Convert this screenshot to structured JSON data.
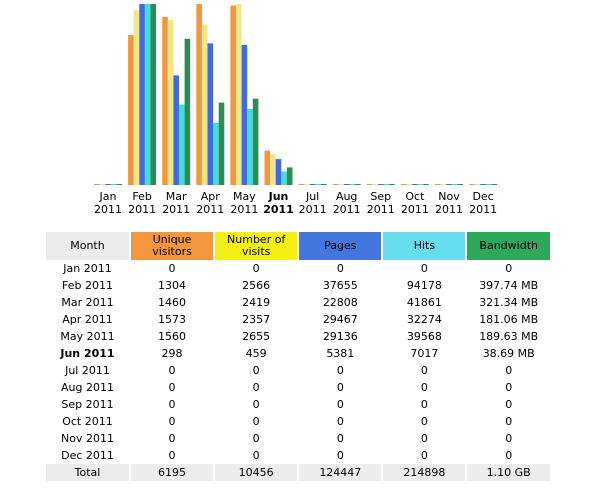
{
  "chart_data": {
    "type": "bar",
    "categories": [
      "Jan 2011",
      "Feb 2011",
      "Mar 2011",
      "Apr 2011",
      "May 2011",
      "Jun 2011",
      "Jul 2011",
      "Aug 2011",
      "Sep 2011",
      "Oct 2011",
      "Nov 2011",
      "Dec 2011"
    ],
    "series": [
      {
        "name": "Unique visitors",
        "color": "#F4963D",
        "values": [
          0,
          1304,
          1460,
          1573,
          1560,
          298,
          0,
          0,
          0,
          0,
          0,
          0
        ]
      },
      {
        "name": "Number of visits",
        "color": "#F0E68C",
        "values": [
          0,
          2566,
          2419,
          2357,
          2655,
          459,
          0,
          0,
          0,
          0,
          0,
          0
        ]
      },
      {
        "name": "Pages",
        "color": "#4169E1",
        "values": [
          0,
          37655,
          22808,
          29467,
          29136,
          5381,
          0,
          0,
          0,
          0,
          0,
          0
        ]
      },
      {
        "name": "Hits",
        "color": "#40E0D0",
        "values": [
          0,
          94178,
          41861,
          32274,
          39568,
          7017,
          0,
          0,
          0,
          0,
          0,
          0
        ]
      },
      {
        "name": "Bandwidth",
        "color": "#2E8B57",
        "values": [
          0,
          397.74,
          321.34,
          181.06,
          189.63,
          38.69,
          0,
          0,
          0,
          0,
          0,
          0
        ]
      }
    ]
  },
  "months_axis": [
    {
      "m": "Jan",
      "y": "2011"
    },
    {
      "m": "Feb",
      "y": "2011"
    },
    {
      "m": "Mar",
      "y": "2011"
    },
    {
      "m": "Apr",
      "y": "2011"
    },
    {
      "m": "May",
      "y": "2011"
    },
    {
      "m": "Jun",
      "y": "2011"
    },
    {
      "m": "Jul",
      "y": "2011"
    },
    {
      "m": "Aug",
      "y": "2011"
    },
    {
      "m": "Sep",
      "y": "2011"
    },
    {
      "m": "Oct",
      "y": "2011"
    },
    {
      "m": "Nov",
      "y": "2011"
    },
    {
      "m": "Dec",
      "y": "2011"
    }
  ],
  "current_month_index": 5,
  "table": {
    "headers": {
      "month": "Month",
      "unique_visitors": "Unique visitors",
      "visits": "Number of visits",
      "pages": "Pages",
      "hits": "Hits",
      "bandwidth": "Bandwidth"
    },
    "rows": [
      [
        "Jan 2011",
        "0",
        "0",
        "0",
        "0",
        "0"
      ],
      [
        "Feb 2011",
        "1304",
        "2566",
        "37655",
        "94178",
        "397.74 MB"
      ],
      [
        "Mar 2011",
        "1460",
        "2419",
        "22808",
        "41861",
        "321.34 MB"
      ],
      [
        "Apr 2011",
        "1573",
        "2357",
        "29467",
        "32274",
        "181.06 MB"
      ],
      [
        "May 2011",
        "1560",
        "2655",
        "29136",
        "39568",
        "189.63 MB"
      ],
      [
        "Jun 2011",
        "298",
        "459",
        "5381",
        "7017",
        "38.69 MB"
      ],
      [
        "Jul 2011",
        "0",
        "0",
        "0",
        "0",
        "0"
      ],
      [
        "Aug 2011",
        "0",
        "0",
        "0",
        "0",
        "0"
      ],
      [
        "Sep 2011",
        "0",
        "0",
        "0",
        "0",
        "0"
      ],
      [
        "Oct 2011",
        "0",
        "0",
        "0",
        "0",
        "0"
      ],
      [
        "Nov 2011",
        "0",
        "0",
        "0",
        "0",
        "0"
      ],
      [
        "Dec 2011",
        "0",
        "0",
        "0",
        "0",
        "0"
      ]
    ],
    "total": [
      "Total",
      "6195",
      "10456",
      "124447",
      "214898",
      "1.10 GB"
    ]
  }
}
